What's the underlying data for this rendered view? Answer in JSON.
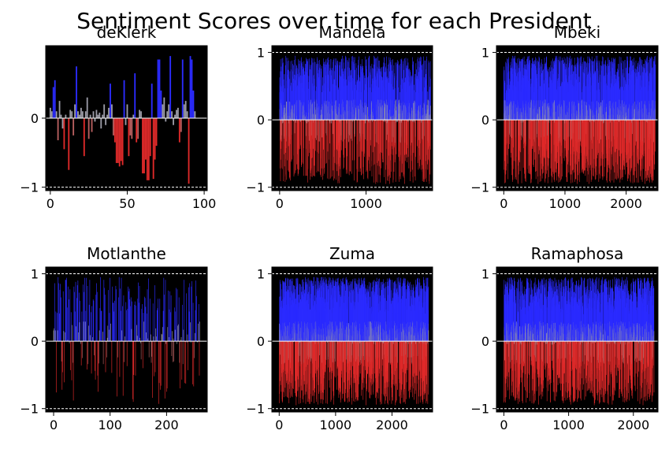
{
  "figure": {
    "title": "Sentiment Scores over time for each President"
  },
  "colors": {
    "background": "#000000",
    "positive": "#2b2bff",
    "negative": "#e02a2a",
    "neutral": "#9a9aa5",
    "zero_line": "#ffffff",
    "ref_line": "#ffffff"
  },
  "chart_data": [
    {
      "type": "bar",
      "title": "deKlerk",
      "xlim": [
        -3,
        102
      ],
      "ylim": [
        -1.05,
        1.05
      ],
      "xticks": [
        0,
        50,
        100
      ],
      "yticks": [
        -1,
        0
      ],
      "ref_lines": [
        -1
      ],
      "n": 95,
      "values": [
        0.15,
        0.1,
        0.45,
        0.55,
        0.1,
        -0.32,
        0.25,
        0.05,
        -0.15,
        -0.45,
        0.05,
        0.0,
        -0.75,
        0.12,
        0.1,
        -0.25,
        0.2,
        0.75,
        0.1,
        0.05,
        0.15,
        0.1,
        -0.55,
        0.1,
        0.3,
        -0.3,
        0.05,
        -0.2,
        0.1,
        -0.05,
        0.12,
        0.05,
        0.08,
        -0.15,
        0.05,
        0.2,
        -0.1,
        0.05,
        0.15,
        0.5,
        0.2,
        -0.25,
        -0.35,
        -0.65,
        -0.65,
        -0.7,
        -0.62,
        -0.68,
        0.55,
        -0.1,
        0.2,
        -0.55,
        -0.25,
        -0.3,
        0.05,
        0.65,
        -0.35,
        -0.3,
        0.12,
        0.1,
        -0.8,
        -0.8,
        -0.6,
        -0.9,
        -0.9,
        -0.55,
        0.5,
        -0.88,
        -0.6,
        -0.4,
        0.85,
        0.85,
        0.4,
        0.2,
        0.3,
        -0.05,
        0.1,
        0.2,
        0.9,
        0.1,
        -0.1,
        0.05,
        0.12,
        0.15,
        -0.35,
        -0.2,
        0.85,
        0.2,
        0.25,
        0.1,
        -0.95,
        0.9,
        0.85,
        0.4,
        0.1
      ]
    },
    {
      "type": "bar",
      "title": "Mandela",
      "xlim": [
        -90,
        1770
      ],
      "ylim": [
        -1.05,
        1.1
      ],
      "xticks": [
        0,
        1000
      ],
      "yticks": [
        -1,
        0,
        1
      ],
      "ref_lines": [
        -1,
        1
      ],
      "n": 1750,
      "seed": 2
    },
    {
      "type": "bar",
      "title": "Mbeki",
      "xlim": [
        -120,
        2520
      ],
      "ylim": [
        -1.05,
        1.1
      ],
      "xticks": [
        0,
        1000,
        2000
      ],
      "yticks": [
        -1,
        0,
        1
      ],
      "ref_lines": [
        -1,
        1
      ],
      "n": 2480,
      "seed": 3
    },
    {
      "type": "bar",
      "title": "Motlanthe",
      "xlim": [
        -14,
        272
      ],
      "ylim": [
        -1.05,
        1.1
      ],
      "xticks": [
        0,
        100,
        200
      ],
      "yticks": [
        -1,
        0,
        1
      ],
      "ref_lines": [
        -1,
        1
      ],
      "n": 260,
      "seed": 4
    },
    {
      "type": "bar",
      "title": "Zuma",
      "xlim": [
        -130,
        2720
      ],
      "ylim": [
        -1.05,
        1.1
      ],
      "xticks": [
        0,
        1000,
        2000
      ],
      "yticks": [
        -1,
        0,
        1
      ],
      "ref_lines": [
        -1,
        1
      ],
      "n": 2650,
      "seed": 5
    },
    {
      "type": "bar",
      "title": "Ramaphosa",
      "xlim": [
        -115,
        2380
      ],
      "ylim": [
        -1.05,
        1.1
      ],
      "xticks": [
        0,
        1000,
        2000
      ],
      "yticks": [
        -1,
        0,
        1
      ],
      "ref_lines": [
        -1,
        1
      ],
      "n": 2320,
      "seed": 6
    }
  ]
}
